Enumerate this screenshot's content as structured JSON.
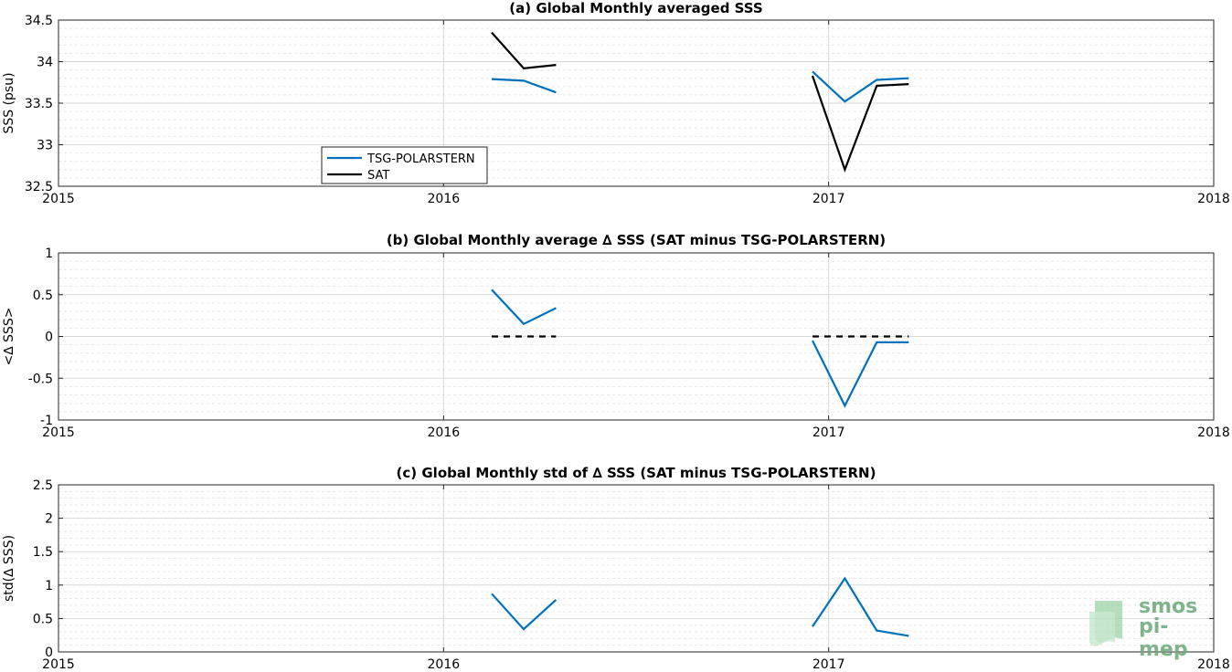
{
  "chart_data": [
    {
      "type": "line",
      "title": "(a) Global Monthly averaged SSS",
      "xlabel": "",
      "ylabel": "SSS (psu)",
      "xlim": [
        2015,
        2018
      ],
      "ylim": [
        32.5,
        34.5
      ],
      "xticks": [
        2015,
        2016,
        2017,
        2018
      ],
      "xtick_labels": [
        "2015",
        "2016",
        "2017",
        "2018"
      ],
      "yticks": [
        32.5,
        33,
        33.5,
        34,
        34.5
      ],
      "ytick_labels": [
        "32.5",
        "33",
        "33.5",
        "34",
        "34.5"
      ],
      "grid": true,
      "legend": "lower-left",
      "series": [
        {
          "name": "TSG-POLARSTERN",
          "color": "#0072BD",
          "dashed": false,
          "segments": [
            [
              [
                2016.125,
                33.79
              ],
              [
                2016.208,
                33.77
              ],
              [
                2016.292,
                33.63
              ]
            ],
            [
              [
                2016.958,
                33.88
              ],
              [
                2017.042,
                33.52
              ],
              [
                2017.125,
                33.78
              ],
              [
                2017.208,
                33.8
              ]
            ]
          ]
        },
        {
          "name": "SAT",
          "color": "#000000",
          "dashed": false,
          "segments": [
            [
              [
                2016.125,
                34.35
              ],
              [
                2016.208,
                33.92
              ],
              [
                2016.292,
                33.96
              ]
            ],
            [
              [
                2016.958,
                33.83
              ],
              [
                2017.042,
                32.7
              ],
              [
                2017.125,
                33.71
              ],
              [
                2017.208,
                33.73
              ]
            ]
          ]
        }
      ]
    },
    {
      "type": "line",
      "title": "(b) Global Monthly average ∆ SSS (SAT minus TSG-POLARSTERN)",
      "xlabel": "",
      "ylabel": "<∆ SSS>",
      "xlim": [
        2015,
        2018
      ],
      "ylim": [
        -1,
        1
      ],
      "xticks": [
        2015,
        2016,
        2017,
        2018
      ],
      "xtick_labels": [
        "2015",
        "2016",
        "2017",
        "2018"
      ],
      "yticks": [
        -1,
        -0.5,
        0,
        0.5,
        1
      ],
      "ytick_labels": [
        "-1",
        "-0.5",
        "0",
        "0.5",
        "1"
      ],
      "grid": true,
      "series": [
        {
          "color": "#0072BD",
          "dashed": false,
          "segments": [
            [
              [
                2016.125,
                0.56
              ],
              [
                2016.208,
                0.15
              ],
              [
                2016.292,
                0.34
              ]
            ],
            [
              [
                2016.958,
                -0.05
              ],
              [
                2017.042,
                -0.83
              ],
              [
                2017.125,
                -0.07
              ],
              [
                2017.208,
                -0.07
              ]
            ]
          ]
        },
        {
          "color": "#000000",
          "dashed": true,
          "segments": [
            [
              [
                2016.125,
                0
              ],
              [
                2016.292,
                0
              ]
            ],
            [
              [
                2016.958,
                0
              ],
              [
                2017.208,
                0
              ]
            ]
          ]
        }
      ]
    },
    {
      "type": "line",
      "title": "(c) Global Monthly std of ∆ SSS (SAT minus TSG-POLARSTERN)",
      "xlabel": "",
      "ylabel": "std(∆ SSS)",
      "xlim": [
        2015,
        2018
      ],
      "ylim": [
        0,
        2.5
      ],
      "xticks": [
        2015,
        2016,
        2017,
        2018
      ],
      "xtick_labels": [
        "2015",
        "2016",
        "2017",
        "2018"
      ],
      "yticks": [
        0,
        0.5,
        1,
        1.5,
        2,
        2.5
      ],
      "ytick_labels": [
        "0",
        "0.5",
        "1",
        "1.5",
        "2",
        "2.5"
      ],
      "grid": true,
      "series": [
        {
          "color": "#0072BD",
          "dashed": false,
          "segments": [
            [
              [
                2016.125,
                0.87
              ],
              [
                2016.208,
                0.34
              ],
              [
                2016.292,
                0.78
              ]
            ],
            [
              [
                2016.958,
                0.38
              ],
              [
                2017.042,
                1.1
              ],
              [
                2017.125,
                0.32
              ],
              [
                2017.208,
                0.24
              ]
            ]
          ]
        }
      ]
    }
  ],
  "logo": {
    "line1": "smos",
    "line2": "pi-mep",
    "color": "#6aa87a"
  }
}
